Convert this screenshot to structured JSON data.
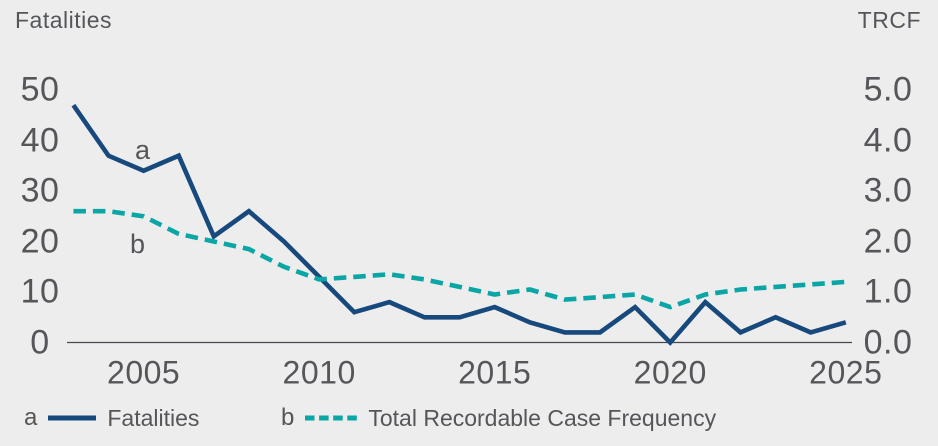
{
  "titles": {
    "left_axis": "Fatalities",
    "right_axis": "TRCF"
  },
  "plot_labels": {
    "a": "a",
    "b": "b"
  },
  "legend": [
    {
      "marker": "a",
      "label": "Fatalities",
      "style": "solid"
    },
    {
      "marker": "b",
      "label": "Total Recordable Case Frequency",
      "style": "dashed"
    }
  ],
  "colors": {
    "fatalities_line": "#17497c",
    "trcf_line": "#0aa5a5",
    "text": "#54565a",
    "axis_line": "#46484b",
    "background": "#ededee"
  },
  "chart_data": {
    "type": "line",
    "title": "",
    "x": [
      2003,
      2004,
      2005,
      2006,
      2007,
      2008,
      2009,
      2010,
      2011,
      2012,
      2013,
      2014,
      2015,
      2016,
      2017,
      2018,
      2019,
      2020,
      2021,
      2022,
      2023,
      2024,
      2025
    ],
    "series": [
      {
        "name": "Fatalities",
        "axis": "left",
        "style": "solid",
        "values": [
          47,
          37,
          34,
          37,
          21,
          26,
          20,
          13,
          6,
          8,
          5,
          5,
          7,
          4,
          2,
          2,
          7,
          0,
          8,
          2,
          5,
          2,
          4
        ]
      },
      {
        "name": "Total Recordable Case Frequency",
        "axis": "right",
        "style": "dashed",
        "values": [
          2.6,
          2.6,
          2.5,
          2.15,
          2.0,
          1.85,
          1.5,
          1.25,
          1.3,
          1.35,
          1.25,
          1.1,
          0.95,
          1.05,
          0.85,
          0.9,
          0.95,
          0.7,
          0.95,
          1.05,
          1.1,
          1.15,
          1.2
        ]
      }
    ],
    "left_axis": {
      "label": "Fatalities",
      "ticks": [
        "50",
        "40",
        "30",
        "20",
        "10",
        "0"
      ],
      "range": [
        0,
        50
      ]
    },
    "right_axis": {
      "label": "TRCF",
      "ticks": [
        "5.0",
        "4.0",
        "3.0",
        "2.0",
        "1.0",
        "0.0"
      ],
      "range": [
        0.0,
        5.0
      ]
    },
    "x_axis": {
      "ticks": [
        "2005",
        "2010",
        "2015",
        "2020",
        "2025"
      ],
      "range": [
        2003,
        2025
      ],
      "grid": false
    },
    "legend_position": "bottom"
  }
}
